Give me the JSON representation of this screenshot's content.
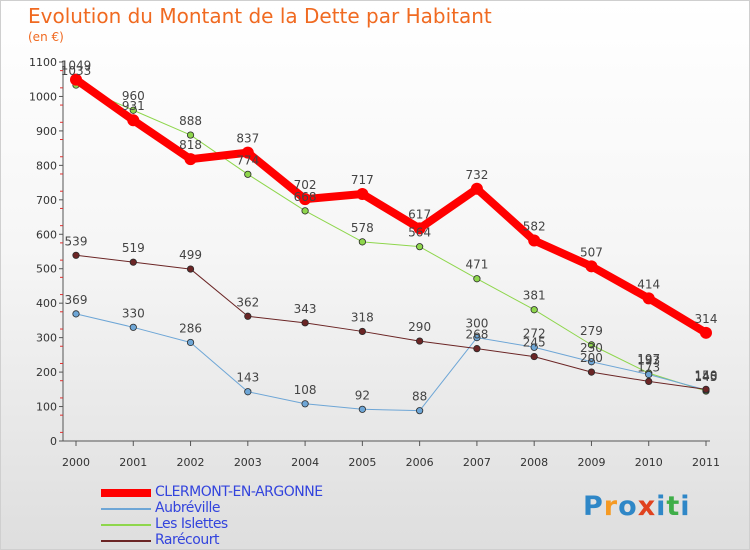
{
  "title": "Evolution du Montant de la Dette par Habitant",
  "subtitle": "(en €)",
  "logo": {
    "text": "Proxiti",
    "colors": [
      "#2f87c7",
      "#f59a23",
      "#2f87c7",
      "#e0421f",
      "#2f87c7",
      "#3fae49",
      "#2f87c7"
    ]
  },
  "chart_data": {
    "type": "line",
    "x": [
      "2000",
      "2001",
      "2002",
      "2003",
      "2004",
      "2005",
      "2006",
      "2007",
      "2008",
      "2009",
      "2010",
      "2011"
    ],
    "yticks": [
      "0",
      "100",
      "200",
      "300",
      "400",
      "500",
      "600",
      "700",
      "800",
      "900",
      "1000",
      "1100"
    ],
    "ylim": [
      0,
      1100
    ],
    "grid": false,
    "legend_position": "bottom-left",
    "series": [
      {
        "name": "Les Islettes",
        "color": "#8ed64c",
        "width": 1,
        "values": [
          1033,
          960,
          888,
          774,
          668,
          578,
          564,
          471,
          381,
          279,
          197,
          145
        ]
      },
      {
        "name": "Aubréville",
        "color": "#6ea6d6",
        "width": 1,
        "values": [
          369,
          330,
          286,
          143,
          108,
          92,
          88,
          300,
          272,
          230,
          193,
          148
        ]
      },
      {
        "name": "Rarécourt",
        "color": "#6b2525",
        "width": 1,
        "values": [
          539,
          519,
          499,
          362,
          343,
          318,
          290,
          268,
          245,
          200,
          173,
          150
        ]
      },
      {
        "name": "CLERMONT-EN-ARGONNE",
        "color": "#ff0000",
        "width": 8,
        "values": [
          1049,
          931,
          818,
          837,
          702,
          717,
          617,
          732,
          582,
          507,
          414,
          314
        ]
      }
    ],
    "data_labels": {
      "Les Islettes": [
        "1033",
        "960",
        "888",
        "774",
        "668",
        "578",
        "564",
        "471",
        "381",
        "279",
        "197",
        "145"
      ],
      "Aubréville": [
        "369",
        "330",
        "286",
        "143",
        "108",
        "92",
        "88",
        "300",
        "272",
        "230",
        "193",
        "148"
      ],
      "Rarécourt": [
        "539",
        "519",
        "499",
        "362",
        "343",
        "318",
        "290",
        "268",
        "245",
        "200",
        "173",
        "150"
      ],
      "CLERMONT-EN-ARGONNE": [
        "1049",
        "931",
        "818",
        "837",
        "702",
        "717",
        "617",
        "732",
        "582",
        "507",
        "414",
        "314"
      ]
    }
  },
  "legend": [
    {
      "label": "CLERMONT-EN-ARGONNE",
      "color": "#ff0000",
      "thickness": 8
    },
    {
      "label": "Aubréville",
      "color": "#6ea6d6",
      "thickness": 2
    },
    {
      "label": "Les Islettes",
      "color": "#8ed64c",
      "thickness": 2
    },
    {
      "label": "Rarécourt",
      "color": "#6b2525",
      "thickness": 2
    }
  ]
}
